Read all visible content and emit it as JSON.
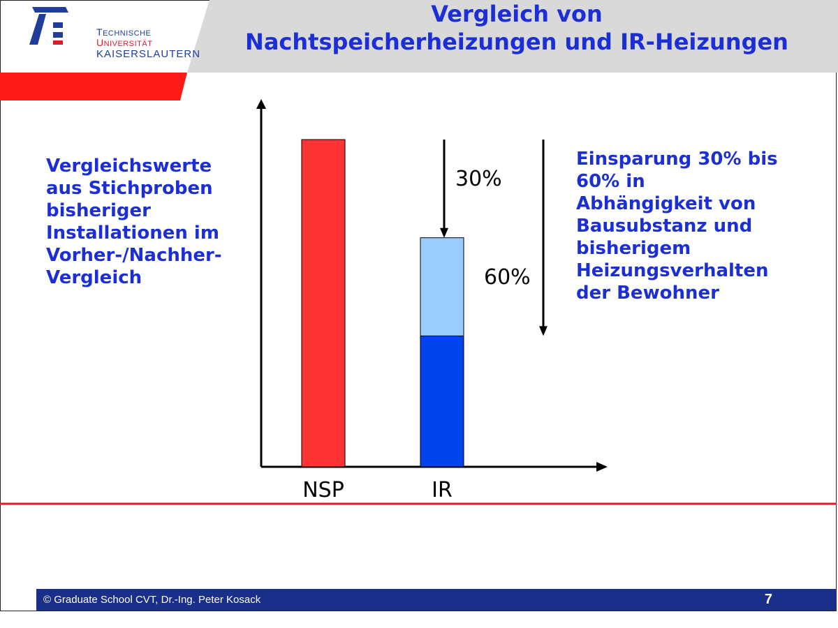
{
  "logo": {
    "line1_part1_cap": "T",
    "line1_part1_rest": "ECHNISCHE ",
    "line1_part2_cap": "U",
    "line1_part2_rest": "NIVERSITÄT",
    "line2": "KAISERSLAUTERN"
  },
  "header": {
    "title_line1": "Vergleich von",
    "title_line2": "Nachtspeicherheizungen und IR-Heizungen"
  },
  "left_text": [
    "Vergleichswerte",
    "aus Stichproben",
    "bisheriger",
    "Installationen im",
    "Vorher-/Nachher-",
    "Vergleich"
  ],
  "right_text": [
    "Einsparung 30% bis",
    "60% in",
    "Abhängigkeit von",
    "Bausubstanz und",
    "bisherigem",
    "Heizungsverhalten",
    "der Bewohner"
  ],
  "chart_data": {
    "type": "bar",
    "title": "",
    "xlabel": "",
    "ylabel": "",
    "ylim": [
      0,
      100
    ],
    "categories": [
      "NSP",
      "IR"
    ],
    "bars": [
      {
        "category": "NSP",
        "segments": [
          {
            "from": 0,
            "to": 100,
            "color": "#ff3333"
          }
        ]
      },
      {
        "category": "IR",
        "segments": [
          {
            "from": 0,
            "to": 40,
            "color": "#0044ee"
          },
          {
            "from": 40,
            "to": 70,
            "color": "#99ccff"
          }
        ]
      }
    ],
    "annotations": [
      {
        "label": "30%",
        "from": 100,
        "to": 70,
        "bar": "IR"
      },
      {
        "label": "60%",
        "from": 100,
        "to": 40,
        "bar": "IR"
      }
    ]
  },
  "colors": {
    "title_blue": "#1c2fd6",
    "accent_red": "#e0182b",
    "header_gray": "#d9d9d9",
    "footer_blue": "#1a2f8a"
  },
  "footer": {
    "text": "© Graduate School CVT, Dr.-Ing. Peter Kosack",
    "page": "7"
  }
}
